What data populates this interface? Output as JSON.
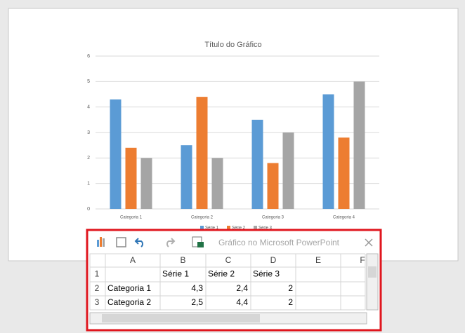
{
  "chart_data": {
    "type": "bar",
    "title": "Título do Gráfico",
    "categories": [
      "Categoria 1",
      "Categoria 2",
      "Categoria 3",
      "Categoria 4"
    ],
    "series": [
      {
        "name": "Série 1",
        "color": "#5b9bd5",
        "values": [
          4.3,
          2.5,
          3.5,
          4.5
        ]
      },
      {
        "name": "Série 2",
        "color": "#ed7d31",
        "values": [
          2.4,
          4.4,
          1.8,
          2.8
        ]
      },
      {
        "name": "Série 3",
        "color": "#a5a5a5",
        "values": [
          2,
          2,
          3,
          5
        ]
      }
    ],
    "ylim": [
      0,
      6
    ],
    "yticks": [
      0,
      1,
      2,
      3,
      4,
      5,
      6
    ],
    "grid": true,
    "legend": "bottom"
  },
  "sheet": {
    "title": "Gráfico no Microsoft PowerPoint",
    "columns": [
      "A",
      "B",
      "C",
      "D",
      "E",
      "F"
    ],
    "row_numbers": [
      1,
      2,
      3
    ],
    "rows": [
      [
        null,
        "Série 1",
        "Série 2",
        "Série 3",
        null,
        null
      ],
      [
        "Categoria 1",
        "4,3",
        "2,4",
        "2",
        null,
        null
      ],
      [
        "Categoria 2",
        "2,5",
        "4,4",
        "2",
        null,
        null
      ]
    ]
  }
}
